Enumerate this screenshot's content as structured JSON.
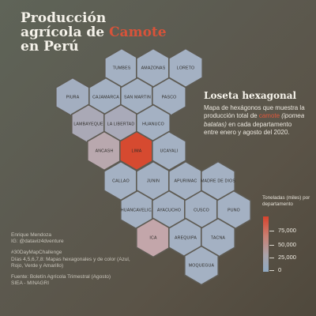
{
  "title": {
    "line1": "Producción",
    "line2_prefix": "agrícola de ",
    "line2_accent": "Camote",
    "line3": "en Perú"
  },
  "info": {
    "heading": "Loseta hexagonal",
    "desc_part1": "Mapa de hexágonos que muestra la producción total de ",
    "desc_accent": "camote",
    "desc_sci": "(ipomea batatas)",
    "desc_part2": " en cada departamento entre enero y agosto del 2020."
  },
  "legend": {
    "title": "Toneladas (miles) por departamento",
    "ticks": [
      "75,000",
      "50,000",
      "25,000",
      "0"
    ],
    "tick_values": [
      75000,
      50000,
      25000,
      0
    ],
    "min": 0,
    "max": 100000,
    "colors": {
      "high": "#d8432d",
      "mid": "#c97f72",
      "low": "#8fa9c2"
    }
  },
  "credits": {
    "author": "Enrique Mendoza",
    "handle": "IG: @dataviz4dventure",
    "challenge": "#30DayMapChallenge",
    "days": "Días 4,5,6,7,8: Mapas hexagonales y de color (Azul, Rojo, Verde y Amarillo)",
    "source_line1": "Fuente: Boletín Agrícola Trimestral (Agosto)",
    "source_line2": "SIEA - MINAGRI"
  },
  "map_data": {
    "departments": [
      {
        "name": "TUMBES",
        "color": "#a4b1c3"
      },
      {
        "name": "AMAZONAS",
        "color": "#a4b1c3"
      },
      {
        "name": "LORETO",
        "color": "#a4b1c3"
      },
      {
        "name": "PIURA",
        "color": "#a3aec0"
      },
      {
        "name": "CAJAMARCA",
        "color": "#a4b1c3"
      },
      {
        "name": "SAN MARTIN",
        "color": "#a4b1c3"
      },
      {
        "name": "PASCO",
        "color": "#a4b1c3"
      },
      {
        "name": "LAMBAYEQUE",
        "color": "#aaa9b6"
      },
      {
        "name": "LA LIBERTAD",
        "color": "#a9aab9"
      },
      {
        "name": "HUANUCO",
        "color": "#a4b1c3"
      },
      {
        "name": "ANCASH",
        "color": "#b9a8ae"
      },
      {
        "name": "LIMA",
        "color": "#d64a30"
      },
      {
        "name": "UCAYALI",
        "color": "#a4b1c3"
      },
      {
        "name": "CALLAO",
        "color": "#a4b1c3"
      },
      {
        "name": "JUNIN",
        "color": "#a4b1c3"
      },
      {
        "name": "APURIMAC",
        "color": "#a4b1c3"
      },
      {
        "name": "MADRE DE DIOS",
        "color": "#a4b1c3"
      },
      {
        "name": "HUANCAVELICA",
        "color": "#a4b1c3"
      },
      {
        "name": "AYACUCHO",
        "color": "#a4b1c3"
      },
      {
        "name": "CUSCO",
        "color": "#a4b1c3"
      },
      {
        "name": "PUNO",
        "color": "#a4b1c3"
      },
      {
        "name": "ICA",
        "color": "#c3a6aa"
      },
      {
        "name": "AREQUIPA",
        "color": "#a4b1c3"
      },
      {
        "name": "TACNA",
        "color": "#a4b1c3"
      },
      {
        "name": "MOQUEGUA",
        "color": "#a4b1c3"
      }
    ]
  }
}
